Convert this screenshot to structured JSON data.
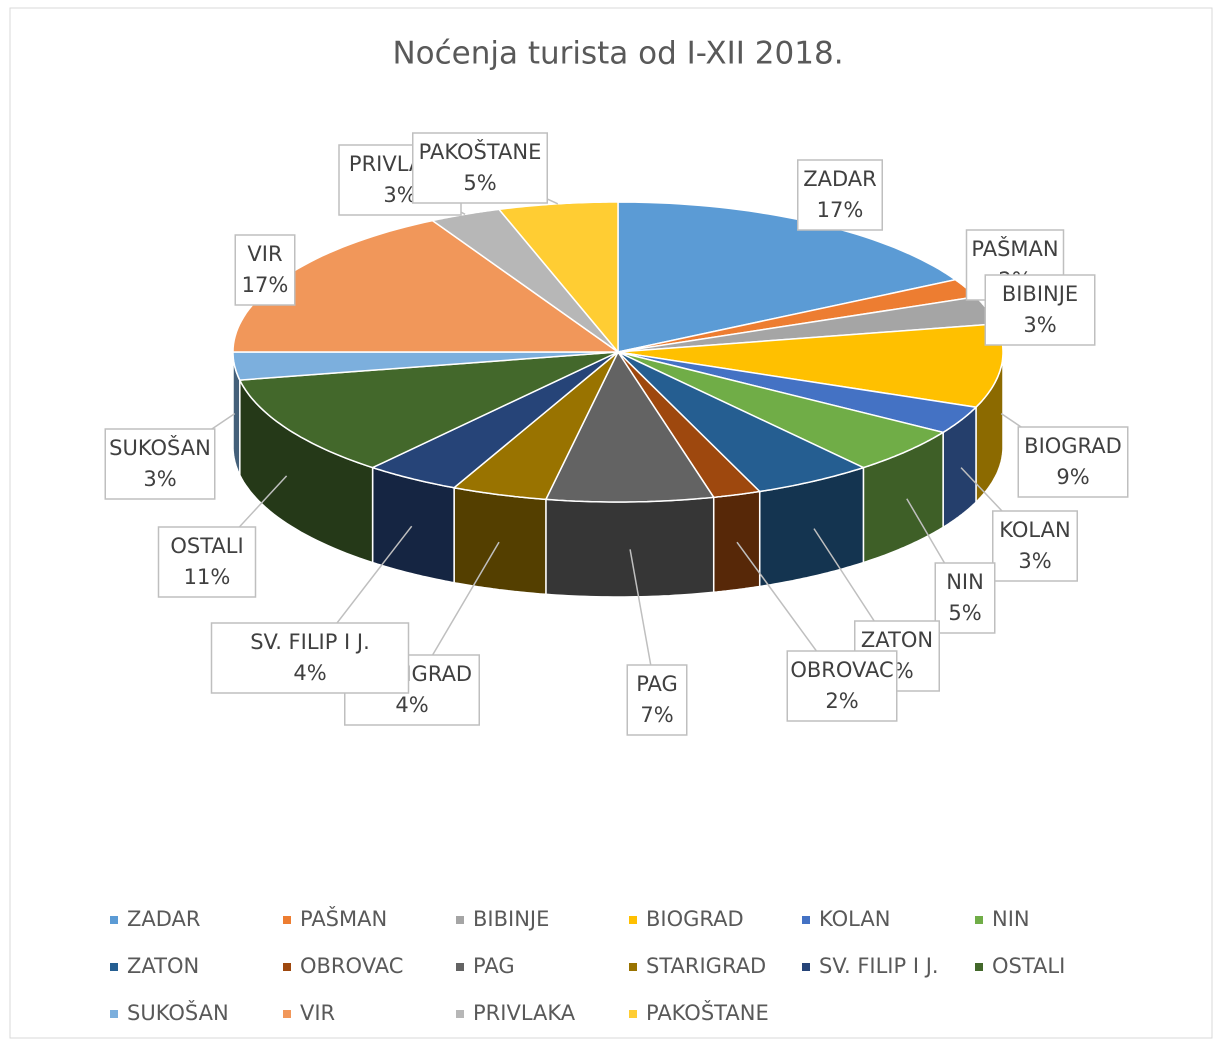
{
  "chart_data": {
    "type": "pie3d",
    "title": "Noćenja turista od I-XII 2018.",
    "categories": [
      "ZADAR",
      "PAŠMAN",
      "BIBINJE",
      "BIOGRAD",
      "KOLAN",
      "NIN",
      "ZATON",
      "OBROVAC",
      "PAG",
      "STARIGRAD",
      "SV. FILIP I J.",
      "OSTALI",
      "SUKOŠAN",
      "VIR",
      "PRIVLAKA",
      "PAKOŠTANE"
    ],
    "values": [
      17,
      2,
      3,
      9,
      3,
      5,
      5,
      2,
      7,
      4,
      4,
      11,
      3,
      17,
      3,
      5
    ],
    "value_labels": [
      "17%",
      "2%",
      "3%",
      "9%",
      "3%",
      "5%",
      "5%",
      "2%",
      "7%",
      "4%",
      "4%",
      "11%",
      "3%",
      "17%",
      "3%",
      "5%"
    ],
    "colors": [
      "#5b9bd5",
      "#ed7d31",
      "#a5a5a5",
      "#ffc000",
      "#4472c4",
      "#70ad47",
      "#255e91",
      "#9e480e",
      "#636363",
      "#997300",
      "#264478",
      "#43682b",
      "#7cafdd",
      "#f1975a",
      "#b7b7b7",
      "#ffcd33"
    ],
    "legend": "bottom"
  }
}
